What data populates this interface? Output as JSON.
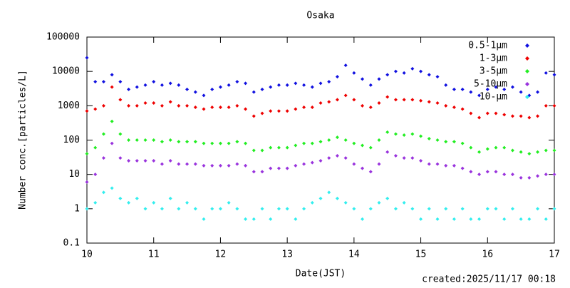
{
  "chart_data": {
    "type": "scatter",
    "title": "Osaka",
    "x_label": "Date(JST)",
    "y_label": "Number conc.[particles/L]",
    "footer": "created:2025/11/17 00:18",
    "log_y": true,
    "legend": "top-right",
    "xlim": [
      10,
      17
    ],
    "xticks": [
      10,
      11,
      12,
      13,
      14,
      15,
      16,
      17
    ],
    "ylim": [
      0.1,
      100000
    ],
    "yticks": [
      0.1,
      1,
      10,
      100,
      1000,
      10000,
      100000
    ],
    "x": [
      10,
      10.125,
      10.25,
      10.375,
      10.5,
      10.625,
      10.75,
      10.875,
      11,
      11.125,
      11.25,
      11.375,
      11.5,
      11.625,
      11.75,
      11.875,
      12,
      12.125,
      12.25,
      12.375,
      12.5,
      12.625,
      12.75,
      12.875,
      13,
      13.125,
      13.25,
      13.375,
      13.5,
      13.625,
      13.75,
      13.875,
      14,
      14.125,
      14.25,
      14.375,
      14.5,
      14.625,
      14.75,
      14.875,
      15,
      15.125,
      15.25,
      15.375,
      15.5,
      15.625,
      15.75,
      15.875,
      16,
      16.125,
      16.25,
      16.375,
      16.5,
      16.625,
      16.75,
      16.875,
      17
    ],
    "series": [
      {
        "name": "0.5-1μm",
        "color": "#1010e0",
        "values": [
          25000,
          5000,
          5000,
          8000,
          5000,
          3000,
          3500,
          4000,
          5000,
          4000,
          4500,
          4000,
          3000,
          2500,
          2000,
          3000,
          3500,
          4000,
          5000,
          4500,
          2500,
          3000,
          3500,
          4000,
          4000,
          4500,
          4000,
          3500,
          4500,
          5000,
          7000,
          15000,
          9000,
          6000,
          4000,
          6000,
          8000,
          10000,
          9000,
          12000,
          10000,
          8000,
          7000,
          4000,
          3000,
          3000,
          2500,
          2000,
          3000,
          3500,
          3000,
          3500,
          2500,
          2000,
          2500,
          9000,
          8000
        ]
      },
      {
        "name": "1-3μm",
        "color": "#ee0000",
        "values": [
          700,
          800,
          1000,
          3500,
          1500,
          1000,
          1000,
          1200,
          1200,
          1000,
          1300,
          1000,
          1000,
          900,
          800,
          900,
          900,
          900,
          1000,
          800,
          500,
          600,
          700,
          700,
          700,
          800,
          900,
          900,
          1200,
          1300,
          1500,
          2000,
          1500,
          1000,
          900,
          1200,
          1800,
          1500,
          1500,
          1500,
          1400,
          1300,
          1200,
          1000,
          900,
          800,
          600,
          450,
          600,
          600,
          550,
          500,
          500,
          450,
          500,
          1000,
          1000
        ]
      },
      {
        "name": "3-5μm",
        "color": "#22ee22",
        "values": [
          40,
          60,
          150,
          350,
          150,
          100,
          100,
          100,
          100,
          90,
          100,
          90,
          90,
          90,
          80,
          80,
          80,
          80,
          90,
          80,
          50,
          50,
          60,
          60,
          60,
          70,
          80,
          80,
          90,
          100,
          120,
          100,
          80,
          70,
          60,
          100,
          170,
          150,
          140,
          150,
          130,
          110,
          100,
          90,
          90,
          80,
          60,
          45,
          55,
          60,
          60,
          50,
          45,
          40,
          45,
          50,
          50
        ]
      },
      {
        "name": "5-10μm",
        "color": "#9933dd",
        "values": [
          6,
          10,
          30,
          80,
          30,
          25,
          25,
          25,
          25,
          20,
          25,
          20,
          20,
          20,
          18,
          18,
          18,
          18,
          20,
          18,
          12,
          12,
          15,
          15,
          15,
          18,
          20,
          22,
          25,
          30,
          35,
          30,
          20,
          15,
          12,
          20,
          45,
          35,
          30,
          30,
          25,
          20,
          20,
          18,
          18,
          15,
          12,
          10,
          12,
          12,
          10,
          10,
          8,
          8,
          9,
          10,
          10
        ]
      },
      {
        "name": "10-μm",
        "color": "#33eeee",
        "values": [
          1,
          1.5,
          3,
          4,
          2,
          1.5,
          2,
          1,
          1.5,
          1,
          2,
          1,
          1.5,
          1,
          0.5,
          1,
          1,
          1.5,
          1,
          0.5,
          0.5,
          1,
          0.5,
          1,
          1,
          0.5,
          1,
          1.5,
          2,
          3,
          2,
          1.5,
          1,
          0.5,
          1,
          1.5,
          2,
          1,
          1.5,
          1,
          0.5,
          1,
          0.5,
          1,
          0.5,
          1,
          0.5,
          0.5,
          1,
          1,
          0.5,
          1,
          0.5,
          0.5,
          1,
          0.5,
          1
        ]
      }
    ]
  }
}
